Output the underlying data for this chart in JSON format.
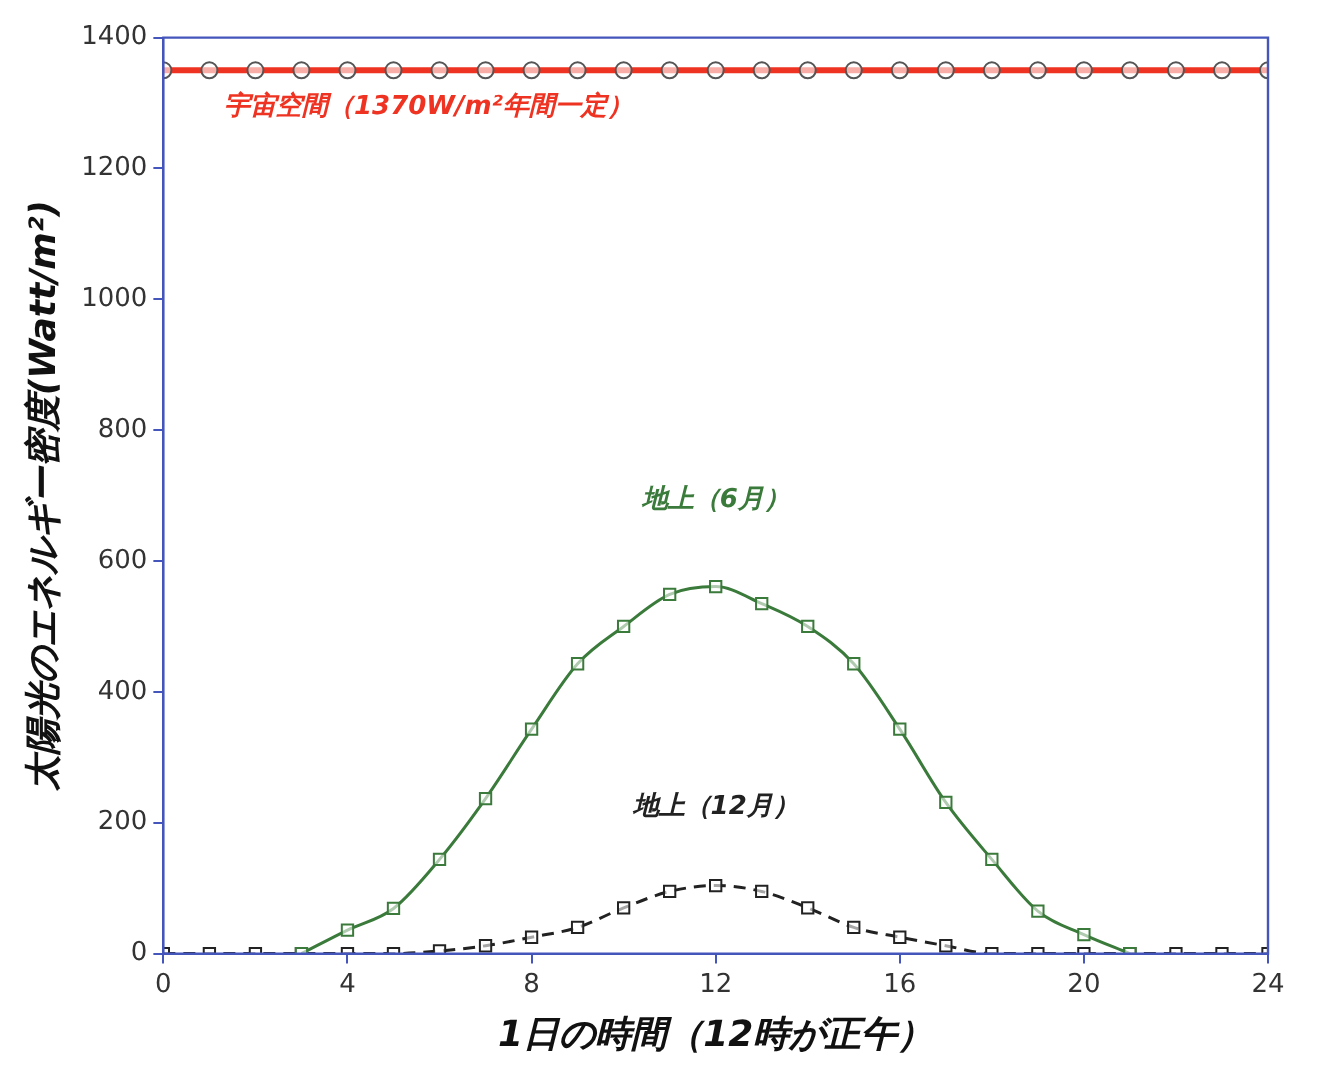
{
  "chart_data": {
    "type": "line",
    "xlabel": "1日の時間（12時が正午）",
    "ylabel": "太陽光のエネルギー密度(Watt/m²)",
    "xlim": [
      0,
      24
    ],
    "xticks": [
      0,
      4,
      8,
      12,
      16,
      20,
      24
    ],
    "ylim": [
      0,
      1400
    ],
    "yticks": [
      0,
      200,
      400,
      600,
      800,
      1000,
      1200,
      1400
    ],
    "grid": false,
    "legend": false,
    "series": [
      {
        "name": "宇宙空間（1370W/m²年間一定）",
        "color": "#ee3322",
        "marker": "circle",
        "line_style": "solid",
        "x": [
          0,
          1,
          2,
          3,
          4,
          5,
          6,
          7,
          8,
          9,
          10,
          11,
          12,
          13,
          14,
          15,
          16,
          17,
          18,
          19,
          20,
          21,
          22,
          23,
          24
        ],
        "values": [
          1350,
          1350,
          1350,
          1350,
          1350,
          1350,
          1350,
          1350,
          1350,
          1350,
          1350,
          1350,
          1350,
          1350,
          1350,
          1350,
          1350,
          1350,
          1350,
          1350,
          1350,
          1350,
          1350,
          1350,
          1350
        ]
      },
      {
        "name": "地上（6月）",
        "color": "#3a7a3a",
        "marker": "square",
        "line_style": "solid",
        "x": [
          3,
          4,
          5,
          6,
          7,
          8,
          9,
          10,
          11,
          12,
          13,
          14,
          15,
          16,
          17,
          18,
          19,
          20,
          21
        ],
        "values": [
          0,
          36,
          69,
          144,
          237,
          343,
          443,
          500,
          549,
          561,
          535,
          500,
          443,
          343,
          231,
          144,
          65,
          29,
          0
        ]
      },
      {
        "name": "地上（12月）",
        "color": "#222222",
        "marker": "square",
        "line_style": "dashed",
        "x": [
          0,
          1,
          2,
          3,
          4,
          5,
          6,
          7,
          8,
          9,
          10,
          11,
          12,
          13,
          14,
          15,
          16,
          17,
          18,
          19,
          20,
          21,
          22,
          23,
          24
        ],
        "values": [
          0,
          0,
          0,
          0,
          0,
          0,
          4,
          12,
          25,
          40,
          70,
          95,
          104,
          95,
          70,
          40,
          25,
          12,
          0,
          0,
          0,
          0,
          0,
          0,
          0
        ]
      }
    ]
  }
}
